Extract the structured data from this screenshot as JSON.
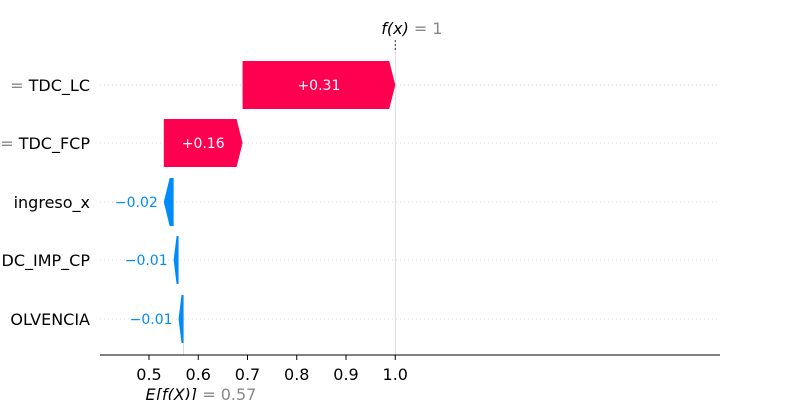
{
  "chart_data": {
    "type": "waterfall",
    "title": "",
    "xlabel": "",
    "ylabel": "",
    "xlim": [
      0.45,
      1.08
    ],
    "xticks": [
      0.5,
      0.6,
      0.7,
      0.8,
      0.9,
      1.0
    ],
    "xtick_labels": [
      "0.5",
      "0.6",
      "0.7",
      "0.8",
      "0.9",
      "1.0"
    ],
    "base_value": 0.57,
    "output_value": 1,
    "base_label_prefix": "E[f(X)]",
    "base_label_value": "= 0.57",
    "output_label_prefix": "f(x)",
    "output_label_value": "= 1",
    "features": [
      {
        "label": "= TDC_LC",
        "value": 0.31,
        "value_label": "+0.31"
      },
      {
        "label": "= TDC_FCP",
        "value": 0.16,
        "value_label": "+0.16"
      },
      {
        "label": "ingreso_x",
        "value": -0.02,
        "value_label": "−0.02"
      },
      {
        "label": "DC_IMP_CP",
        "value": -0.01,
        "value_label": "−0.01"
      },
      {
        "label": "OLVENCIA",
        "value": -0.01,
        "value_label": "−0.01"
      }
    ],
    "colors": {
      "positive": "#ff0051",
      "negative": "#008bfb",
      "axis": "#000000",
      "muted": "#888888",
      "gridline": "#cccccc"
    }
  }
}
